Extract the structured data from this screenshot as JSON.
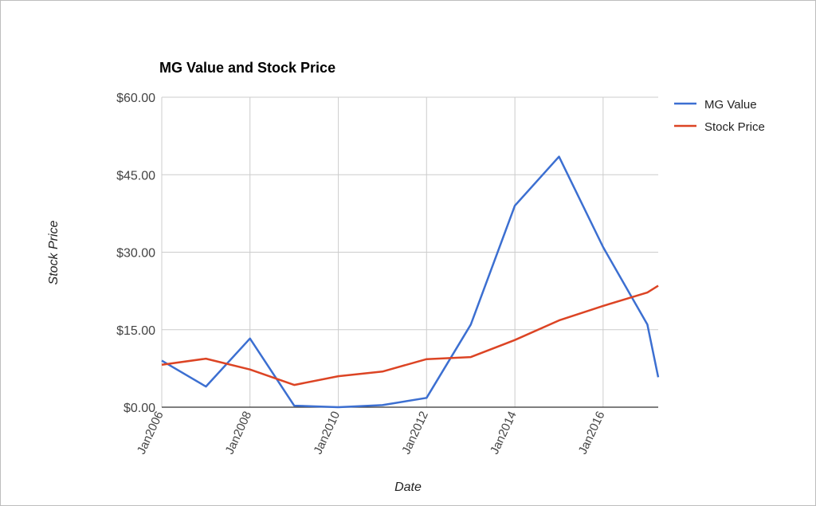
{
  "chart_data": {
    "type": "line",
    "title": "MG Value and Stock Price",
    "xlabel": "Date",
    "ylabel": "Stock Price",
    "x": [
      "2006-01-01",
      "2007-01-01",
      "2008-01-01",
      "2009-01-01",
      "2010-01-01",
      "2011-01-01",
      "2012-01-01",
      "2013-01-01",
      "2014-01-01",
      "2015-01-01",
      "2016-01-01",
      "2017-01-01",
      "2017-04-01"
    ],
    "x_ticks": [
      "Jan2006",
      "Jan2008",
      "Jan2010",
      "Jan2012",
      "Jan2014",
      "Jan2016"
    ],
    "y_ticks": [
      "$0.00",
      "$15.00",
      "$30.00",
      "$45.00",
      "$60.00"
    ],
    "xlim": [
      "2006-01-01",
      "2017-04-01"
    ],
    "ylim": [
      0,
      60
    ],
    "grid": true,
    "legend": "right",
    "series": [
      {
        "name": "MG Value",
        "color": "#3c6fd1",
        "values": [
          9.0,
          4.0,
          13.3,
          0.3,
          0.0,
          0.4,
          1.8,
          16.0,
          39.0,
          48.5,
          31.0,
          16.0,
          5.8
        ]
      },
      {
        "name": "Stock Price",
        "color": "#dc4424",
        "values": [
          8.2,
          9.4,
          7.3,
          4.3,
          6.0,
          6.9,
          9.3,
          9.7,
          13.0,
          16.8,
          19.6,
          22.2,
          23.5
        ]
      }
    ]
  }
}
